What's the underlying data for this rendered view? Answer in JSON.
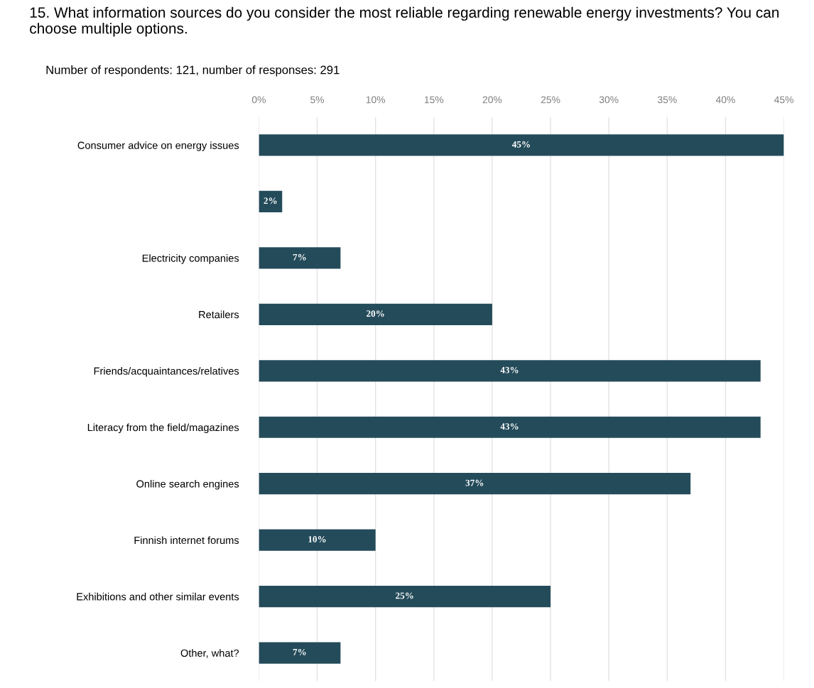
{
  "chart_data": {
    "type": "bar",
    "orientation": "horizontal",
    "title": "15. What information sources do you consider the most reliable regarding renewable energy investments? You can choose multiple options.",
    "subtitle": "Number of respondents: 121, number of responses: 291",
    "categories": [
      "Consumer advice on energy issues",
      null,
      "Electricity companies",
      "Retailers",
      "Friends/acquaintances/relatives",
      "Literacy from the field/magazines",
      "Online search engines",
      "Finnish internet forums",
      "Exhibitions and other similar events",
      "Other, what?"
    ],
    "values": [
      45,
      2,
      7,
      20,
      43,
      43,
      37,
      10,
      25,
      7
    ],
    "value_labels": [
      "45%",
      "2%",
      "7%",
      "20%",
      "43%",
      "43%",
      "37%",
      "10%",
      "25%",
      "7%"
    ],
    "color": "#244b5a",
    "xlim": [
      0,
      45
    ],
    "xticks": [
      {
        "value": 0,
        "label": "0%"
      },
      {
        "value": 5,
        "label": "5%"
      },
      {
        "value": 10,
        "label": "10%"
      },
      {
        "value": 15,
        "label": "15%"
      },
      {
        "value": 20,
        "label": "20%"
      },
      {
        "value": 25,
        "label": "25%"
      },
      {
        "value": 30,
        "label": "30%"
      },
      {
        "value": 35,
        "label": "35%"
      },
      {
        "value": 40,
        "label": "40%"
      },
      {
        "value": 45,
        "label": "45%"
      }
    ],
    "grid": "x"
  }
}
